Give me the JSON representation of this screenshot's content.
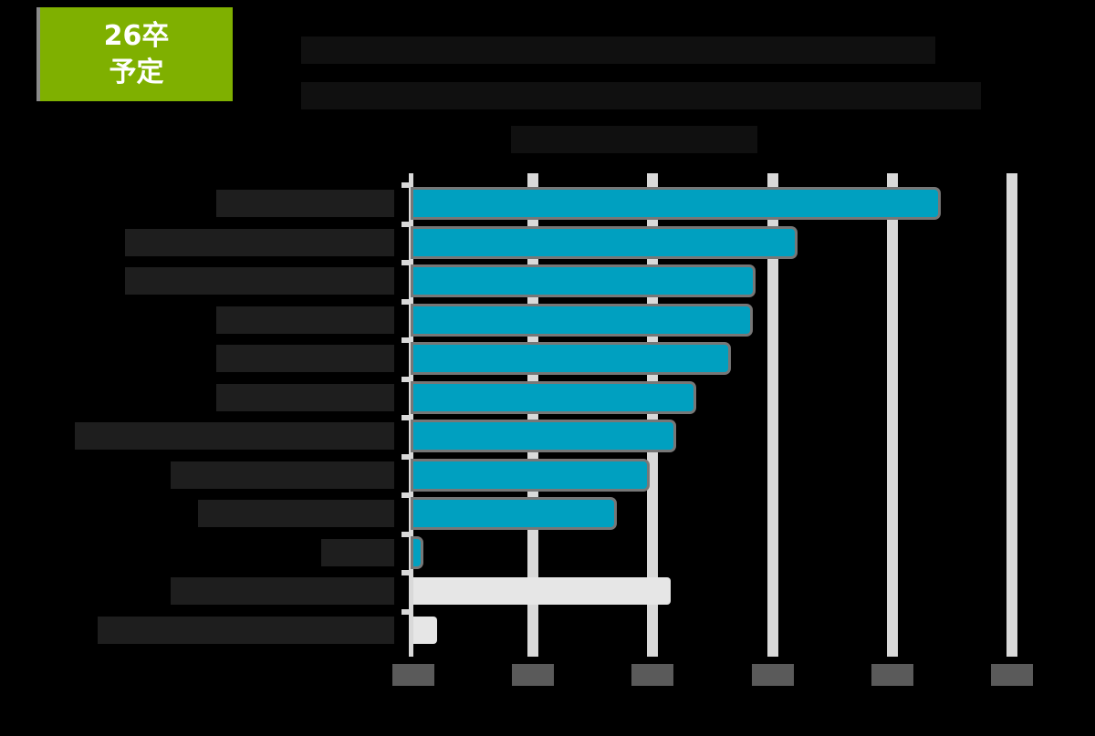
{
  "badge": {
    "line1": "26卒",
    "line2": "予定",
    "color": "#7fb000"
  },
  "title": {
    "lines_obscured": 3
  },
  "colors": {
    "bar_primary": "#00a0c0",
    "bar_secondary": "#e6e6e6",
    "gridline": "#d9d9d9",
    "background": "#000000"
  },
  "chart_data": {
    "type": "bar",
    "orientation": "horizontal",
    "title": "",
    "xlabel": "",
    "ylabel": "",
    "xlim": [
      0,
      100
    ],
    "x_ticks": [
      "0%",
      "20%",
      "40%",
      "60%",
      "80%",
      "100%"
    ],
    "grid": true,
    "legend": null,
    "categories": [
      "",
      "",
      "",
      "",
      "",
      "",
      "",
      "",
      "",
      "",
      "",
      ""
    ],
    "values": [
      87.6,
      63.7,
      56.7,
      56.3,
      52.6,
      46.8,
      43.4,
      39.1,
      33.6,
      1.2,
      43.0,
      4.0
    ],
    "bar_styles": [
      "primary",
      "primary",
      "primary",
      "primary",
      "primary",
      "primary",
      "primary",
      "primary",
      "primary",
      "primary",
      "secondary",
      "secondary"
    ],
    "note": "Category labels, title and data labels are rendered as unreadable dark blocks in the source image."
  }
}
